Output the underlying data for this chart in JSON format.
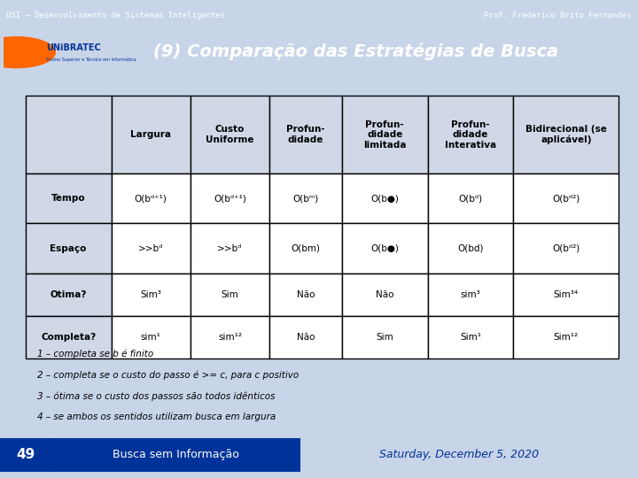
{
  "title": "(9) Comparação das Estratégias de Busca",
  "header_bg": "#003399",
  "slide_bg": "#c8d4e8",
  "content_bg": "#dce6f0",
  "table_bg": "#ffffff",
  "top_bar_text": "DSI – Desenvolvimento de Sistemas Inteligentes",
  "top_bar_right": "Prof. Frederico Brito Fernandes",
  "bottom_left": "49",
  "bottom_center": "Busca sem Informação",
  "bottom_right": "Saturday, December 5, 2020",
  "col_headers": [
    "",
    "Largura",
    "Custo\nUniforme",
    "Profun-\ndidade",
    "Profun-\ndidade\nlimitada",
    "Profun-\ndidade\nInterativa",
    "Bidirecional (se\naplicável)"
  ],
  "row_headers": [
    "Tempo",
    "Espaço",
    "Otima?",
    "Completa?"
  ],
  "table_data": [
    [
      "O(bᵈ⁺¹)",
      "O(bᵈ⁺¹)",
      "O(bᵐ)",
      "O(b●)",
      "O(bᵈ)",
      "O(bᵈ²)"
    ],
    [
      ">>bᵈ",
      ">>bᵈ",
      "O(bm)",
      "O(b●)",
      "O(bd)",
      "O(bᵈ²)"
    ],
    [
      "Sim³",
      "Sim",
      "Não",
      "Não",
      "sim³",
      "Sim³⁴"
    ],
    [
      "sim¹",
      "sim¹²",
      "Não",
      "Sim",
      "Sim¹",
      "Sim¹²"
    ]
  ],
  "footnotes": [
    "1 – completa se b é finito",
    "2 – completa se o custo do passo é >= c, para c positivo",
    "3 – ótima se o custo dos passos são todos idênticos",
    "4 – se ambos os sentidos utilizam busca em largura"
  ]
}
